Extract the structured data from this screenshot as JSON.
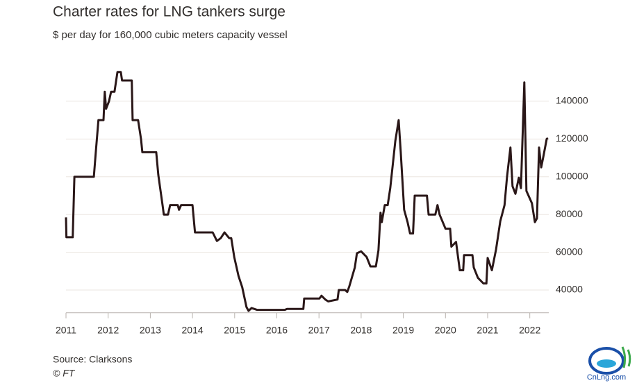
{
  "chart_data": {
    "type": "line",
    "title": "Charter rates for LNG tankers surge",
    "subtitle": "$ per day for 160,000 cubic meters capacity vessel",
    "source": "Source: Clarksons",
    "credit": "© FT",
    "watermark": "CnLng.com",
    "color": "#2a1718",
    "grid": true,
    "yaxis_side": "right",
    "xlim": [
      2011,
      2022.45
    ],
    "ylim": [
      28000,
      160000
    ],
    "xticks": [
      2011,
      2012,
      2013,
      2014,
      2015,
      2016,
      2017,
      2018,
      2019,
      2020,
      2021,
      2022
    ],
    "yticks": [
      40000,
      60000,
      80000,
      100000,
      120000,
      140000
    ],
    "x": [
      2011.0,
      2011.01,
      2011.16,
      2011.2,
      2011.66,
      2011.71,
      2011.77,
      2011.89,
      2011.92,
      2011.95,
      2012.02,
      2012.07,
      2012.15,
      2012.22,
      2012.3,
      2012.33,
      2012.56,
      2012.58,
      2012.71,
      2012.78,
      2012.81,
      2013.14,
      2013.19,
      2013.29,
      2013.32,
      2013.42,
      2013.47,
      2013.65,
      2013.68,
      2013.73,
      2014.0,
      2014.06,
      2014.48,
      2014.58,
      2014.67,
      2014.76,
      2014.87,
      2014.92,
      2014.99,
      2015.09,
      2015.18,
      2015.28,
      2015.33,
      2015.4,
      2015.53,
      2016.19,
      2016.24,
      2016.63,
      2016.65,
      2017.01,
      2017.06,
      2017.15,
      2017.22,
      2017.44,
      2017.47,
      2017.62,
      2017.67,
      2017.72,
      2017.85,
      2017.9,
      2018.0,
      2018.13,
      2018.22,
      2018.35,
      2018.41,
      2018.46,
      2018.49,
      2018.56,
      2018.63,
      2018.69,
      2018.81,
      2018.89,
      2018.94,
      2019.02,
      2019.1,
      2019.16,
      2019.23,
      2019.27,
      2019.56,
      2019.6,
      2019.76,
      2019.81,
      2019.86,
      2020.0,
      2020.11,
      2020.14,
      2020.25,
      2020.34,
      2020.42,
      2020.44,
      2020.64,
      2020.67,
      2020.77,
      2020.9,
      2020.97,
      2021.0,
      2021.1,
      2021.2,
      2021.3,
      2021.4,
      2021.46,
      2021.54,
      2021.59,
      2021.66,
      2021.74,
      2021.79,
      2021.87,
      2021.92,
      2022.05,
      2022.12,
      2022.17,
      2022.22,
      2022.27,
      2022.32,
      2022.4,
      2022.43
    ],
    "values": [
      78500,
      68000,
      68000,
      100000,
      100000,
      114000,
      130000,
      130000,
      145000,
      136000,
      140000,
      145000,
      145000,
      155500,
      155500,
      151000,
      151000,
      130000,
      130000,
      120000,
      113000,
      113000,
      101000,
      85000,
      80000,
      80000,
      85000,
      85000,
      82500,
      85000,
      85000,
      70500,
      70500,
      66000,
      67500,
      70500,
      67500,
      67500,
      57500,
      47500,
      41500,
      31000,
      29000,
      30500,
      29500,
      29500,
      30000,
      30000,
      35500,
      35500,
      37000,
      35000,
      34000,
      35000,
      40000,
      40000,
      39000,
      42000,
      52000,
      59500,
      60500,
      57500,
      52500,
      52500,
      61000,
      81000,
      76000,
      85000,
      85000,
      94000,
      119000,
      130000,
      113000,
      82500,
      76000,
      70000,
      70000,
      90000,
      90000,
      80000,
      80000,
      85000,
      80000,
      72500,
      72500,
      63000,
      65500,
      50500,
      50500,
      58500,
      58500,
      52000,
      46500,
      43500,
      43500,
      57000,
      50500,
      61500,
      76500,
      85000,
      100000,
      115500,
      95000,
      91000,
      99500,
      94000,
      150000,
      92500,
      86000,
      76000,
      78000,
      115500,
      105000,
      110500,
      120000,
      120500
    ]
  }
}
